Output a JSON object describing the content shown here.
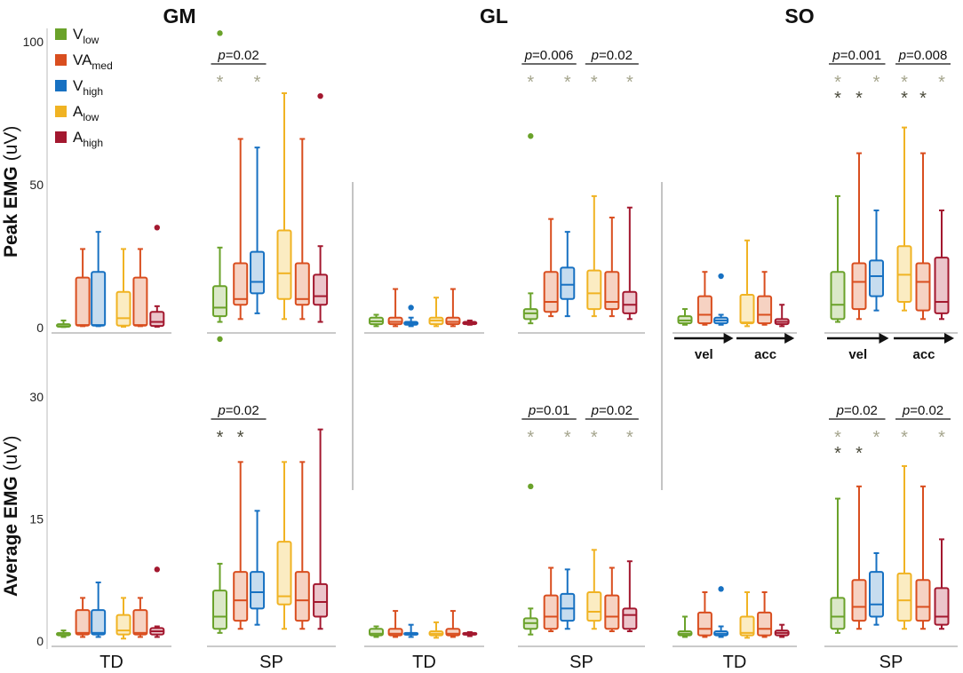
{
  "chart_data": {
    "type": "boxplot",
    "muscles": [
      "GM",
      "GL",
      "SO"
    ],
    "groups": [
      "TD",
      "SP"
    ],
    "conditions": [
      {
        "key": "vlow",
        "main": "V",
        "sub": "low",
        "color": "#6aa22a",
        "fill": "#dbe8c8"
      },
      {
        "key": "vamed",
        "main": "VA",
        "sub": "med",
        "color": "#d94e1f",
        "fill": "#f6d2c2"
      },
      {
        "key": "vhigh",
        "main": "V",
        "sub": "high",
        "color": "#1771c2",
        "fill": "#c6dcef"
      },
      {
        "key": "alow",
        "main": "A",
        "sub": "low",
        "color": "#f0b323",
        "fill": "#fbecc2"
      },
      {
        "key": "ahigh",
        "main": "A",
        "sub": "high",
        "color": "#a3182f",
        "fill": "#ecc5cb"
      }
    ],
    "rows": [
      {
        "ylabel_bold": "Peak EMG",
        "ylabel_unit": "(uV)",
        "ylim": [
          0,
          100
        ],
        "ticks": [
          0,
          50,
          100
        ]
      },
      {
        "ylabel_bold": "Average EMG",
        "ylabel_unit": "(uV)",
        "ylim": [
          0,
          30
        ],
        "ticks": [
          0,
          15,
          30
        ]
      }
    ],
    "star_color_gray": "#a5a58d",
    "star_color_dark": "#4a4a3a",
    "arrow_labels": [
      "vel",
      "acc"
    ],
    "panels": [
      {
        "row": 0,
        "muscle": "GM",
        "group": "TD",
        "dividers": [],
        "arrows": false,
        "pbars": [],
        "boxes": [
          {
            "min": 0.2,
            "q1": 0.3,
            "med": 0.5,
            "q3": 1.2,
            "max": 2.5,
            "out": []
          },
          {
            "min": 0.5,
            "q1": 0.7,
            "med": 0.9,
            "q3": 17.5,
            "max": 27.5,
            "out": []
          },
          {
            "min": 0.5,
            "q1": 0.7,
            "med": 0.9,
            "q3": 19.5,
            "max": 33.5,
            "out": []
          },
          {
            "min": 0.3,
            "q1": 0.7,
            "med": 3.3,
            "q3": 12.5,
            "max": 27.5,
            "out": []
          },
          {
            "min": 0.5,
            "q1": 0.7,
            "med": 0.9,
            "q3": 17.5,
            "max": 27.5,
            "out": []
          },
          {
            "min": 0.3,
            "q1": 0.6,
            "med": 2.0,
            "q3": 5.5,
            "max": 7.5,
            "out": [
              35
            ]
          }
        ]
      },
      {
        "row": 0,
        "muscle": "GM",
        "group": "SP",
        "dividers": [],
        "arrows": false,
        "pbars": [
          {
            "label": "p=0.02",
            "from": 0,
            "to": 2
          }
        ],
        "stars": [
          {
            "idx": 0,
            "lvl": 0,
            "c": "gray"
          },
          {
            "idx": 2,
            "lvl": 0,
            "c": "gray"
          }
        ],
        "boxes": [
          {
            "min": 2,
            "q1": 4,
            "med": 7,
            "q3": 14.5,
            "max": 28,
            "out": [
              103,
              -4
            ]
          },
          {
            "min": 3,
            "q1": 8,
            "med": 10,
            "q3": 22.5,
            "max": 66,
            "out": []
          },
          {
            "min": 5,
            "q1": 12,
            "med": 16,
            "q3": 26.5,
            "max": 63,
            "out": []
          },
          {
            "min": 3,
            "q1": 10,
            "med": 19,
            "q3": 34,
            "max": 82,
            "out": []
          },
          {
            "min": 3,
            "q1": 8,
            "med": 10,
            "q3": 22.5,
            "max": 66,
            "out": []
          },
          {
            "min": 2,
            "q1": 8,
            "med": 11,
            "q3": 18.5,
            "max": 28.5,
            "out": [
              81
            ]
          }
        ]
      },
      {
        "row": 0,
        "muscle": "GL",
        "group": "TD",
        "dividers": [
          {
            "at": "before"
          }
        ],
        "arrows": false,
        "pbars": [],
        "boxes": [
          {
            "min": 0.5,
            "q1": 1.2,
            "med": 2.2,
            "q3": 3.5,
            "max": 4.5,
            "out": []
          },
          {
            "min": 0.5,
            "q1": 1.2,
            "med": 2.0,
            "q3": 3.5,
            "max": 13.5,
            "out": []
          },
          {
            "min": 0.5,
            "q1": 1.0,
            "med": 1.5,
            "q3": 2.0,
            "max": 3.5,
            "out": [
              7
            ]
          },
          {
            "min": 0.5,
            "q1": 1.2,
            "med": 2.5,
            "q3": 3.5,
            "max": 10.5,
            "out": []
          },
          {
            "min": 0.5,
            "q1": 1.2,
            "med": 2.0,
            "q3": 3.5,
            "max": 13.5,
            "out": []
          },
          {
            "min": 1.0,
            "q1": 1.2,
            "med": 1.6,
            "q3": 2.0,
            "max": 2.5,
            "out": []
          }
        ]
      },
      {
        "row": 0,
        "muscle": "GL",
        "group": "SP",
        "dividers": [],
        "arrows": false,
        "pbars": [
          {
            "label": "p=0.006",
            "from": 0,
            "to": 2
          },
          {
            "label": "p=0.02",
            "from": 3,
            "to": 5
          }
        ],
        "stars": [
          {
            "idx": 0,
            "lvl": 0,
            "c": "gray"
          },
          {
            "idx": 2,
            "lvl": 0,
            "c": "gray"
          },
          {
            "idx": 3,
            "lvl": 0,
            "c": "gray"
          },
          {
            "idx": 5,
            "lvl": 0,
            "c": "gray"
          }
        ],
        "boxes": [
          {
            "min": 1.5,
            "q1": 3,
            "med": 5,
            "q3": 6.5,
            "max": 12,
            "out": [
              67
            ]
          },
          {
            "min": 4,
            "q1": 5.5,
            "med": 9,
            "q3": 19.5,
            "max": 38,
            "out": []
          },
          {
            "min": 4,
            "q1": 10,
            "med": 15,
            "q3": 21,
            "max": 33.5,
            "out": []
          },
          {
            "min": 4,
            "q1": 6.5,
            "med": 12,
            "q3": 20,
            "max": 46,
            "out": []
          },
          {
            "min": 4,
            "q1": 6.5,
            "med": 9,
            "q3": 19.5,
            "max": 38.5,
            "out": []
          },
          {
            "min": 3,
            "q1": 5,
            "med": 8,
            "q3": 12.5,
            "max": 42,
            "out": []
          }
        ]
      },
      {
        "row": 0,
        "muscle": "SO",
        "group": "TD",
        "dividers": [
          {
            "at": "before"
          }
        ],
        "arrows": true,
        "pbars": [],
        "boxes": [
          {
            "min": 1,
            "q1": 1.5,
            "med": 2.5,
            "q3": 4,
            "max": 6.5,
            "out": []
          },
          {
            "min": 1,
            "q1": 1.5,
            "med": 4.5,
            "q3": 11,
            "max": 19.5,
            "out": []
          },
          {
            "min": 1,
            "q1": 1.5,
            "med": 2.5,
            "q3": 3.5,
            "max": 4.5,
            "out": [
              18
            ]
          },
          {
            "min": 0.5,
            "q1": 1.5,
            "med": 1.8,
            "q3": 11.5,
            "max": 30.5,
            "out": []
          },
          {
            "min": 1,
            "q1": 1.5,
            "med": 4.5,
            "q3": 11,
            "max": 19.5,
            "out": []
          },
          {
            "min": 0.5,
            "q1": 1.2,
            "med": 2,
            "q3": 3,
            "max": 8,
            "out": []
          }
        ]
      },
      {
        "row": 0,
        "muscle": "SO",
        "group": "SP",
        "dividers": [],
        "arrows": true,
        "pbars": [
          {
            "label": "p=0.001",
            "from": 0,
            "to": 2
          },
          {
            "label": "p=0.008",
            "from": 3,
            "to": 5
          }
        ],
        "stars": [
          {
            "idx": 0,
            "lvl": 0,
            "c": "gray"
          },
          {
            "idx": 2,
            "lvl": 0,
            "c": "gray"
          },
          {
            "idx": 3,
            "lvl": 0,
            "c": "gray"
          },
          {
            "idx": 5,
            "lvl": 0,
            "c": "gray"
          },
          {
            "idx": 0,
            "lvl": 1,
            "c": "dark"
          },
          {
            "idx": 1,
            "lvl": 1,
            "c": "dark"
          },
          {
            "idx": 3,
            "lvl": 1,
            "c": "dark"
          },
          {
            "idx": 4,
            "lvl": 1,
            "c": "dark"
          }
        ],
        "boxes": [
          {
            "min": 2,
            "q1": 3,
            "med": 8,
            "q3": 19.5,
            "max": 46,
            "out": []
          },
          {
            "min": 3,
            "q1": 6.5,
            "med": 16,
            "q3": 22.5,
            "max": 61,
            "out": []
          },
          {
            "min": 6,
            "q1": 11,
            "med": 18,
            "q3": 23.5,
            "max": 41,
            "out": []
          },
          {
            "min": 6,
            "q1": 9,
            "med": 18.5,
            "q3": 28.5,
            "max": 70,
            "out": []
          },
          {
            "min": 3,
            "q1": 6,
            "med": 16,
            "q3": 22.5,
            "max": 61,
            "out": []
          },
          {
            "min": 3,
            "q1": 5,
            "med": 9,
            "q3": 24.5,
            "max": 41,
            "out": []
          }
        ]
      },
      {
        "row": 1,
        "muscle": "GM",
        "group": "TD",
        "dividers": [],
        "arrows": false,
        "pbars": [],
        "boxes": [
          {
            "min": 0.5,
            "q1": 0.7,
            "med": 0.9,
            "q3": 1.0,
            "max": 1.3,
            "out": []
          },
          {
            "min": 0.5,
            "q1": 0.8,
            "med": 1.0,
            "q3": 3.8,
            "max": 5.3,
            "out": []
          },
          {
            "min": 0.5,
            "q1": 0.8,
            "med": 1.0,
            "q3": 3.8,
            "max": 7.2,
            "out": []
          },
          {
            "min": 0.3,
            "q1": 0.8,
            "med": 1.3,
            "q3": 3.2,
            "max": 5.3,
            "out": []
          },
          {
            "min": 0.5,
            "q1": 0.8,
            "med": 1.0,
            "q3": 3.8,
            "max": 5.3,
            "out": []
          },
          {
            "min": 0.5,
            "q1": 0.8,
            "med": 1.2,
            "q3": 1.6,
            "max": 1.8,
            "out": [
              8.8
            ]
          }
        ]
      },
      {
        "row": 1,
        "muscle": "GM",
        "group": "SP",
        "dividers": [],
        "arrows": false,
        "pbars": [
          {
            "label": "p=0.02",
            "from": 0,
            "to": 2
          }
        ],
        "stars": [
          {
            "idx": 0,
            "lvl": 0,
            "c": "dark"
          },
          {
            "idx": 1,
            "lvl": 0,
            "c": "dark"
          }
        ],
        "boxes": [
          {
            "min": 1,
            "q1": 1.5,
            "med": 3,
            "q3": 6.2,
            "max": 9.5,
            "out": []
          },
          {
            "min": 1.5,
            "q1": 2.5,
            "med": 5,
            "q3": 8.5,
            "max": 22,
            "out": []
          },
          {
            "min": 2,
            "q1": 4,
            "med": 6,
            "q3": 8.5,
            "max": 16,
            "out": []
          },
          {
            "min": 1.5,
            "q1": 4.5,
            "med": 5.5,
            "q3": 12.2,
            "max": 22,
            "out": []
          },
          {
            "min": 1.5,
            "q1": 2.5,
            "med": 5,
            "q3": 8.5,
            "max": 22,
            "out": []
          },
          {
            "min": 1.5,
            "q1": 3,
            "med": 4.8,
            "q3": 7,
            "max": 26,
            "out": []
          }
        ]
      },
      {
        "row": 1,
        "muscle": "GL",
        "group": "TD",
        "dividers": [
          {
            "at": "before"
          }
        ],
        "arrows": false,
        "pbars": [],
        "boxes": [
          {
            "min": 0.5,
            "q1": 0.7,
            "med": 0.9,
            "q3": 1.5,
            "max": 1.8,
            "out": []
          },
          {
            "min": 0.5,
            "q1": 0.7,
            "med": 0.9,
            "q3": 1.5,
            "max": 3.7,
            "out": []
          },
          {
            "min": 0.5,
            "q1": 0.8,
            "med": 0.9,
            "q3": 1.0,
            "max": 2.0,
            "out": []
          },
          {
            "min": 0.4,
            "q1": 0.7,
            "med": 0.9,
            "q3": 1.2,
            "max": 2.3,
            "out": []
          },
          {
            "min": 0.5,
            "q1": 0.7,
            "med": 0.9,
            "q3": 1.5,
            "max": 3.7,
            "out": []
          },
          {
            "min": 0.6,
            "q1": 0.8,
            "med": 0.9,
            "q3": 1.0,
            "max": 1.1,
            "out": []
          }
        ]
      },
      {
        "row": 1,
        "muscle": "GL",
        "group": "SP",
        "dividers": [],
        "arrows": false,
        "pbars": [
          {
            "label": "p=0.01",
            "from": 0,
            "to": 2
          },
          {
            "label": "p=0.02",
            "from": 3,
            "to": 5
          }
        ],
        "stars": [
          {
            "idx": 0,
            "lvl": 0,
            "c": "gray"
          },
          {
            "idx": 2,
            "lvl": 0,
            "c": "gray"
          },
          {
            "idx": 3,
            "lvl": 0,
            "c": "gray"
          },
          {
            "idx": 5,
            "lvl": 0,
            "c": "gray"
          }
        ],
        "boxes": [
          {
            "min": 0.8,
            "q1": 1.5,
            "med": 2.2,
            "q3": 2.8,
            "max": 4,
            "out": [
              19
            ]
          },
          {
            "min": 1.2,
            "q1": 1.5,
            "med": 3,
            "q3": 5.6,
            "max": 9,
            "out": []
          },
          {
            "min": 1.5,
            "q1": 2.5,
            "med": 4,
            "q3": 5.8,
            "max": 8.8,
            "out": []
          },
          {
            "min": 1.5,
            "q1": 2.5,
            "med": 3.6,
            "q3": 6,
            "max": 11.2,
            "out": []
          },
          {
            "min": 1.2,
            "q1": 1.5,
            "med": 3,
            "q3": 5.6,
            "max": 9,
            "out": []
          },
          {
            "min": 1.2,
            "q1": 1.5,
            "med": 3.2,
            "q3": 4,
            "max": 9.8,
            "out": []
          }
        ]
      },
      {
        "row": 1,
        "muscle": "SO",
        "group": "TD",
        "dividers": [
          {
            "at": "before"
          }
        ],
        "arrows": false,
        "pbars": [],
        "boxes": [
          {
            "min": 0.5,
            "q1": 0.7,
            "med": 0.9,
            "q3": 1.2,
            "max": 3,
            "out": []
          },
          {
            "min": 0.5,
            "q1": 0.7,
            "med": 1.5,
            "q3": 3.5,
            "max": 6,
            "out": []
          },
          {
            "min": 0.5,
            "q1": 0.7,
            "med": 0.9,
            "q3": 1.2,
            "max": 1.8,
            "out": [
              6.4
            ]
          },
          {
            "min": 0.4,
            "q1": 0.7,
            "med": 1.0,
            "q3": 3.0,
            "max": 6,
            "out": []
          },
          {
            "min": 0.5,
            "q1": 0.7,
            "med": 1.5,
            "q3": 3.5,
            "max": 6,
            "out": []
          },
          {
            "min": 0.5,
            "q1": 0.7,
            "med": 1.0,
            "q3": 1.3,
            "max": 2,
            "out": []
          }
        ]
      },
      {
        "row": 1,
        "muscle": "SO",
        "group": "SP",
        "dividers": [],
        "arrows": false,
        "pbars": [
          {
            "label": "p=0.02",
            "from": 0,
            "to": 2
          },
          {
            "label": "p=0.02",
            "from": 3,
            "to": 5
          }
        ],
        "stars": [
          {
            "idx": 0,
            "lvl": 0,
            "c": "gray"
          },
          {
            "idx": 2,
            "lvl": 0,
            "c": "gray"
          },
          {
            "idx": 3,
            "lvl": 0,
            "c": "gray"
          },
          {
            "idx": 5,
            "lvl": 0,
            "c": "gray"
          },
          {
            "idx": 0,
            "lvl": 1,
            "c": "dark"
          },
          {
            "idx": 1,
            "lvl": 1,
            "c": "dark"
          }
        ],
        "boxes": [
          {
            "min": 1,
            "q1": 1.5,
            "med": 3,
            "q3": 5.3,
            "max": 17.5,
            "out": []
          },
          {
            "min": 1.5,
            "q1": 2.5,
            "med": 4.2,
            "q3": 7.5,
            "max": 19,
            "out": []
          },
          {
            "min": 2,
            "q1": 3,
            "med": 4.5,
            "q3": 8.5,
            "max": 10.8,
            "out": []
          },
          {
            "min": 1.5,
            "q1": 2.5,
            "med": 5,
            "q3": 8.3,
            "max": 21.5,
            "out": []
          },
          {
            "min": 1.5,
            "q1": 2.5,
            "med": 4.2,
            "q3": 7.5,
            "max": 19,
            "out": []
          },
          {
            "min": 1.5,
            "q1": 2,
            "med": 3,
            "q3": 6.5,
            "max": 12.5,
            "out": []
          }
        ]
      }
    ]
  }
}
